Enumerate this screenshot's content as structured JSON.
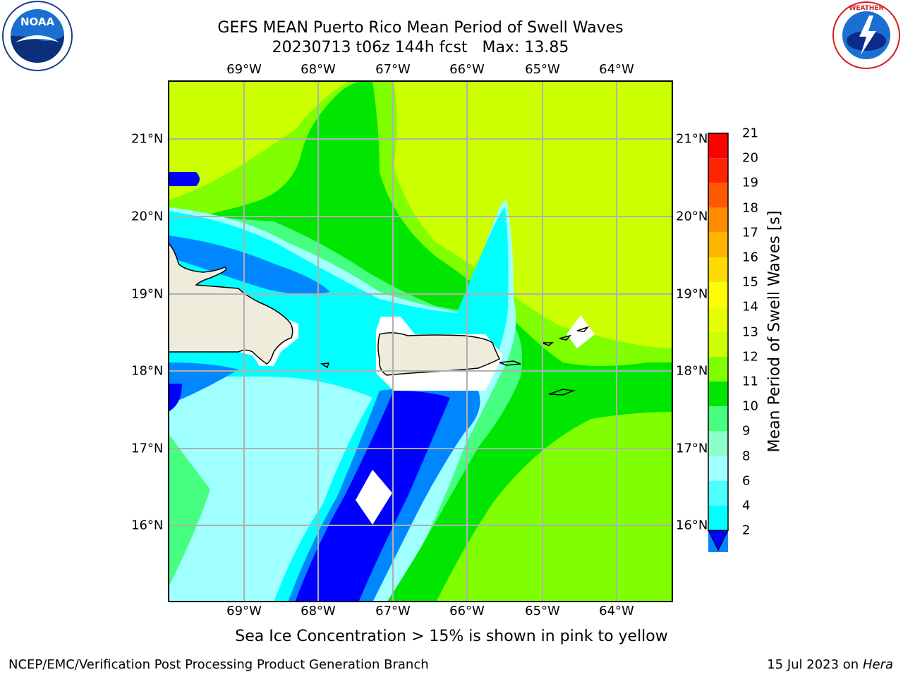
{
  "title": {
    "line1": "GEFS MEAN Puerto Rico Mean Period of Swell Waves",
    "line2": "20230713 t06z 144h fcst   Max: 13.85"
  },
  "longitude_labels": [
    "69°W",
    "68°W",
    "67°W",
    "66°W",
    "65°W",
    "64°W"
  ],
  "latitude_labels": [
    "21°N",
    "20°N",
    "19°N",
    "18°N",
    "17°N",
    "16°N"
  ],
  "colorbar": {
    "label": "Mean Period of Swell Waves [s]",
    "ticks": [
      "21",
      "20",
      "19",
      "18",
      "17",
      "16",
      "15",
      "14",
      "13",
      "12",
      "11",
      "10",
      "9",
      "8",
      "6",
      "4",
      "2"
    ],
    "colors": [
      "#ff0000",
      "#ff2400",
      "#ff5a00",
      "#ff8c00",
      "#ffb400",
      "#ffdc00",
      "#ffff00",
      "#e6ff00",
      "#ccff00",
      "#80ff00",
      "#00e600",
      "#46ff80",
      "#8cffc8",
      "#a0ffff",
      "#4dffff",
      "#00ffff",
      "#0087ff",
      "#0000ff"
    ]
  },
  "note": "Sea Ice Concentration > 15% is shown in pink to yellow",
  "footer": {
    "left": "NCEP/EMC/Verification Post Processing Product Generation Branch",
    "date": "15 Jul 2023 on ",
    "host": "Hera"
  },
  "logos": {
    "left": "NOAA",
    "right": "NATIONAL WEATHER SERVICE"
  }
}
